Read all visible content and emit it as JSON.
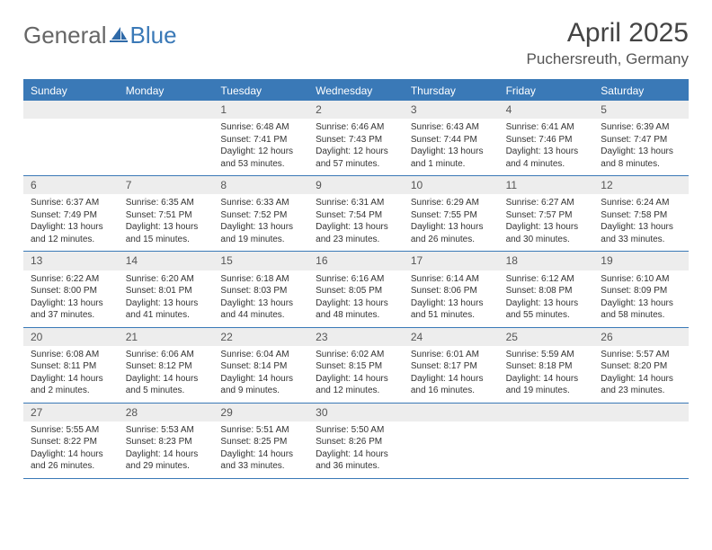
{
  "brand": {
    "part1": "General",
    "part2": "Blue"
  },
  "title": "April 2025",
  "location": "Puchersreuth, Germany",
  "colors": {
    "header_bg": "#3a79b7",
    "header_text": "#ffffff",
    "daynum_bg": "#ededed",
    "daynum_text": "#555555",
    "body_text": "#333333",
    "rule": "#3a79b7",
    "page_bg": "#ffffff"
  },
  "typography": {
    "title_fontsize": 30,
    "location_fontsize": 17,
    "dow_fontsize": 12,
    "daynum_fontsize": 12,
    "body_fontsize": 10
  },
  "daysOfWeek": [
    "Sunday",
    "Monday",
    "Tuesday",
    "Wednesday",
    "Thursday",
    "Friday",
    "Saturday"
  ],
  "weeks": [
    [
      null,
      null,
      {
        "n": "1",
        "sunrise": "Sunrise: 6:48 AM",
        "sunset": "Sunset: 7:41 PM",
        "daylight": "Daylight: 12 hours and 53 minutes."
      },
      {
        "n": "2",
        "sunrise": "Sunrise: 6:46 AM",
        "sunset": "Sunset: 7:43 PM",
        "daylight": "Daylight: 12 hours and 57 minutes."
      },
      {
        "n": "3",
        "sunrise": "Sunrise: 6:43 AM",
        "sunset": "Sunset: 7:44 PM",
        "daylight": "Daylight: 13 hours and 1 minute."
      },
      {
        "n": "4",
        "sunrise": "Sunrise: 6:41 AM",
        "sunset": "Sunset: 7:46 PM",
        "daylight": "Daylight: 13 hours and 4 minutes."
      },
      {
        "n": "5",
        "sunrise": "Sunrise: 6:39 AM",
        "sunset": "Sunset: 7:47 PM",
        "daylight": "Daylight: 13 hours and 8 minutes."
      }
    ],
    [
      {
        "n": "6",
        "sunrise": "Sunrise: 6:37 AM",
        "sunset": "Sunset: 7:49 PM",
        "daylight": "Daylight: 13 hours and 12 minutes."
      },
      {
        "n": "7",
        "sunrise": "Sunrise: 6:35 AM",
        "sunset": "Sunset: 7:51 PM",
        "daylight": "Daylight: 13 hours and 15 minutes."
      },
      {
        "n": "8",
        "sunrise": "Sunrise: 6:33 AM",
        "sunset": "Sunset: 7:52 PM",
        "daylight": "Daylight: 13 hours and 19 minutes."
      },
      {
        "n": "9",
        "sunrise": "Sunrise: 6:31 AM",
        "sunset": "Sunset: 7:54 PM",
        "daylight": "Daylight: 13 hours and 23 minutes."
      },
      {
        "n": "10",
        "sunrise": "Sunrise: 6:29 AM",
        "sunset": "Sunset: 7:55 PM",
        "daylight": "Daylight: 13 hours and 26 minutes."
      },
      {
        "n": "11",
        "sunrise": "Sunrise: 6:27 AM",
        "sunset": "Sunset: 7:57 PM",
        "daylight": "Daylight: 13 hours and 30 minutes."
      },
      {
        "n": "12",
        "sunrise": "Sunrise: 6:24 AM",
        "sunset": "Sunset: 7:58 PM",
        "daylight": "Daylight: 13 hours and 33 minutes."
      }
    ],
    [
      {
        "n": "13",
        "sunrise": "Sunrise: 6:22 AM",
        "sunset": "Sunset: 8:00 PM",
        "daylight": "Daylight: 13 hours and 37 minutes."
      },
      {
        "n": "14",
        "sunrise": "Sunrise: 6:20 AM",
        "sunset": "Sunset: 8:01 PM",
        "daylight": "Daylight: 13 hours and 41 minutes."
      },
      {
        "n": "15",
        "sunrise": "Sunrise: 6:18 AM",
        "sunset": "Sunset: 8:03 PM",
        "daylight": "Daylight: 13 hours and 44 minutes."
      },
      {
        "n": "16",
        "sunrise": "Sunrise: 6:16 AM",
        "sunset": "Sunset: 8:05 PM",
        "daylight": "Daylight: 13 hours and 48 minutes."
      },
      {
        "n": "17",
        "sunrise": "Sunrise: 6:14 AM",
        "sunset": "Sunset: 8:06 PM",
        "daylight": "Daylight: 13 hours and 51 minutes."
      },
      {
        "n": "18",
        "sunrise": "Sunrise: 6:12 AM",
        "sunset": "Sunset: 8:08 PM",
        "daylight": "Daylight: 13 hours and 55 minutes."
      },
      {
        "n": "19",
        "sunrise": "Sunrise: 6:10 AM",
        "sunset": "Sunset: 8:09 PM",
        "daylight": "Daylight: 13 hours and 58 minutes."
      }
    ],
    [
      {
        "n": "20",
        "sunrise": "Sunrise: 6:08 AM",
        "sunset": "Sunset: 8:11 PM",
        "daylight": "Daylight: 14 hours and 2 minutes."
      },
      {
        "n": "21",
        "sunrise": "Sunrise: 6:06 AM",
        "sunset": "Sunset: 8:12 PM",
        "daylight": "Daylight: 14 hours and 5 minutes."
      },
      {
        "n": "22",
        "sunrise": "Sunrise: 6:04 AM",
        "sunset": "Sunset: 8:14 PM",
        "daylight": "Daylight: 14 hours and 9 minutes."
      },
      {
        "n": "23",
        "sunrise": "Sunrise: 6:02 AM",
        "sunset": "Sunset: 8:15 PM",
        "daylight": "Daylight: 14 hours and 12 minutes."
      },
      {
        "n": "24",
        "sunrise": "Sunrise: 6:01 AM",
        "sunset": "Sunset: 8:17 PM",
        "daylight": "Daylight: 14 hours and 16 minutes."
      },
      {
        "n": "25",
        "sunrise": "Sunrise: 5:59 AM",
        "sunset": "Sunset: 8:18 PM",
        "daylight": "Daylight: 14 hours and 19 minutes."
      },
      {
        "n": "26",
        "sunrise": "Sunrise: 5:57 AM",
        "sunset": "Sunset: 8:20 PM",
        "daylight": "Daylight: 14 hours and 23 minutes."
      }
    ],
    [
      {
        "n": "27",
        "sunrise": "Sunrise: 5:55 AM",
        "sunset": "Sunset: 8:22 PM",
        "daylight": "Daylight: 14 hours and 26 minutes."
      },
      {
        "n": "28",
        "sunrise": "Sunrise: 5:53 AM",
        "sunset": "Sunset: 8:23 PM",
        "daylight": "Daylight: 14 hours and 29 minutes."
      },
      {
        "n": "29",
        "sunrise": "Sunrise: 5:51 AM",
        "sunset": "Sunset: 8:25 PM",
        "daylight": "Daylight: 14 hours and 33 minutes."
      },
      {
        "n": "30",
        "sunrise": "Sunrise: 5:50 AM",
        "sunset": "Sunset: 8:26 PM",
        "daylight": "Daylight: 14 hours and 36 minutes."
      },
      null,
      null,
      null
    ]
  ]
}
